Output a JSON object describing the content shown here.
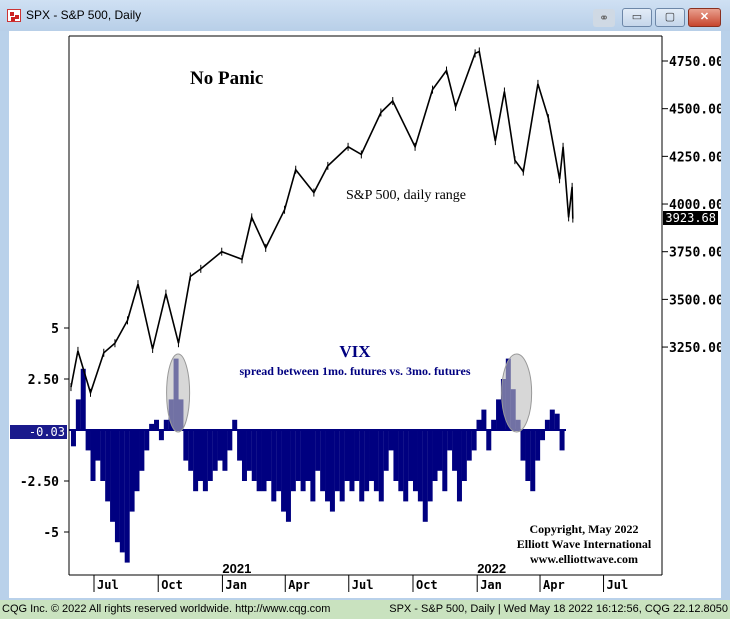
{
  "window": {
    "title": "SPX - S&P 500, Daily",
    "minimize_label": "▭",
    "maximize_label": "▢",
    "close_label": "✕",
    "link_icon": "link-icon"
  },
  "status": {
    "left": "CQG Inc. © 2022 All rights reserved worldwide. http://www.cqg.com",
    "right": "SPX - S&P 500, Daily | Wed May 18 2022 16:12:56, CQG 22.12.8050"
  },
  "colors": {
    "price": "#000000",
    "vix": "#000080",
    "highlight": "#bdbdbd"
  },
  "chart_data": {
    "type": "line+bar",
    "title": "No Panic",
    "annotations": {
      "price_label": "S&P 500, daily range",
      "vix_title": "VIX",
      "vix_subtitle": "spread between 1mo. futures vs. 3mo. futures",
      "copyright": [
        "Copyright, May 2022",
        "Elliott Wave International",
        "www.elliottwave.com"
      ]
    },
    "x_axis": {
      "month_ticks": [
        {
          "label": "Jul",
          "date": "2020-07-01"
        },
        {
          "label": "Oct",
          "date": "2020-10-01"
        },
        {
          "label": "Jan",
          "date": "2021-01-01"
        },
        {
          "label": "Apr",
          "date": "2021-04-01"
        },
        {
          "label": "Jul",
          "date": "2021-07-01"
        },
        {
          "label": "Oct",
          "date": "2021-10-01"
        },
        {
          "label": "Jan",
          "date": "2022-01-01"
        },
        {
          "label": "Apr",
          "date": "2022-04-01"
        },
        {
          "label": "Jul",
          "date": "2022-07-01"
        }
      ],
      "year_labels": [
        {
          "label": "2021",
          "date": "2021-01-01"
        },
        {
          "label": "2022",
          "date": "2022-01-01"
        }
      ]
    },
    "right_axis": {
      "ticks": [
        4750,
        4500,
        4250,
        4000,
        3750,
        3500,
        3250
      ],
      "tick_labels": [
        "4750.00",
        "4500.00",
        "4250.00",
        "4000.00",
        "3750.00",
        "3500.00",
        "3250.00"
      ],
      "last_value": "3923.68"
    },
    "left_axis": {
      "ticks": [
        5,
        2.5,
        -2.5,
        -5
      ],
      "tick_labels": [
        "5",
        "2.50",
        "-2.50",
        "-5"
      ],
      "last_value": "-0.03"
    },
    "highlights": [
      {
        "from": "2020-10-13",
        "to": "2020-11-15"
      },
      {
        "from": "2022-02-05",
        "to": "2022-03-20"
      }
    ],
    "series": [
      {
        "name": "S&P 500, daily range",
        "type": "line",
        "points": [
          [
            "2020-05-29",
            3040
          ],
          [
            "2020-06-08",
            3230
          ],
          [
            "2020-06-26",
            3010
          ],
          [
            "2020-07-15",
            3220
          ],
          [
            "2020-07-31",
            3270
          ],
          [
            "2020-08-18",
            3390
          ],
          [
            "2020-09-02",
            3580
          ],
          [
            "2020-09-23",
            3240
          ],
          [
            "2020-10-12",
            3530
          ],
          [
            "2020-10-30",
            3270
          ],
          [
            "2020-11-16",
            3620
          ],
          [
            "2020-12-01",
            3660
          ],
          [
            "2020-12-31",
            3750
          ],
          [
            "2021-01-29",
            3710
          ],
          [
            "2021-02-12",
            3930
          ],
          [
            "2021-03-04",
            3770
          ],
          [
            "2021-03-31",
            3970
          ],
          [
            "2021-04-16",
            4180
          ],
          [
            "2021-05-12",
            4060
          ],
          [
            "2021-06-01",
            4200
          ],
          [
            "2021-06-30",
            4300
          ],
          [
            "2021-07-19",
            4260
          ],
          [
            "2021-08-16",
            4480
          ],
          [
            "2021-09-02",
            4540
          ],
          [
            "2021-10-04",
            4300
          ],
          [
            "2021-10-29",
            4600
          ],
          [
            "2021-11-18",
            4700
          ],
          [
            "2021-12-01",
            4510
          ],
          [
            "2021-12-29",
            4790
          ],
          [
            "2022-01-04",
            4800
          ],
          [
            "2022-01-27",
            4330
          ],
          [
            "2022-02-09",
            4590
          ],
          [
            "2022-02-24",
            4230
          ],
          [
            "2022-03-08",
            4170
          ],
          [
            "2022-03-29",
            4630
          ],
          [
            "2022-04-13",
            4450
          ],
          [
            "2022-04-29",
            4130
          ],
          [
            "2022-05-04",
            4300
          ],
          [
            "2022-05-12",
            3930
          ],
          [
            "2022-05-17",
            4090
          ],
          [
            "2022-05-18",
            3923.68
          ]
        ]
      },
      {
        "name": "VIX",
        "type": "bar",
        "x_start": "2020-05-29",
        "x_step_days": 7,
        "values": [
          -0.8,
          1.5,
          3,
          -1,
          -2.5,
          -1.5,
          -2.5,
          -3.5,
          -4.5,
          -5.5,
          -6,
          -6.5,
          -4,
          -3,
          -2,
          -1,
          0.3,
          0.5,
          -0.5,
          0.5,
          1.5,
          3.5,
          1.5,
          -1.5,
          -2,
          -3,
          -2.5,
          -3,
          -2.5,
          -2,
          -1.5,
          -2,
          -1,
          0.5,
          -1.5,
          -2.5,
          -2,
          -2.5,
          -3,
          -3,
          -2.5,
          -3.5,
          -3,
          -4,
          -4.5,
          -3,
          -2.5,
          -3,
          -2.5,
          -3.5,
          -2,
          -3,
          -3.5,
          -4,
          -3,
          -3.5,
          -2.5,
          -3,
          -2.5,
          -3.5,
          -3,
          -2.5,
          -3,
          -3.5,
          -2,
          -1,
          -2.5,
          -3,
          -3.5,
          -2.5,
          -3,
          -3.5,
          -4.5,
          -3.5,
          -2.5,
          -2,
          -3,
          -1,
          -2,
          -3.5,
          -2.5,
          -1.5,
          -1,
          0.5,
          1,
          -1,
          0.5,
          1.5,
          2.5,
          3.5,
          2,
          0.5,
          -1.5,
          -2.5,
          -3,
          -1.5,
          -0.5,
          0.5,
          1,
          0.8,
          -1
        ]
      }
    ]
  }
}
